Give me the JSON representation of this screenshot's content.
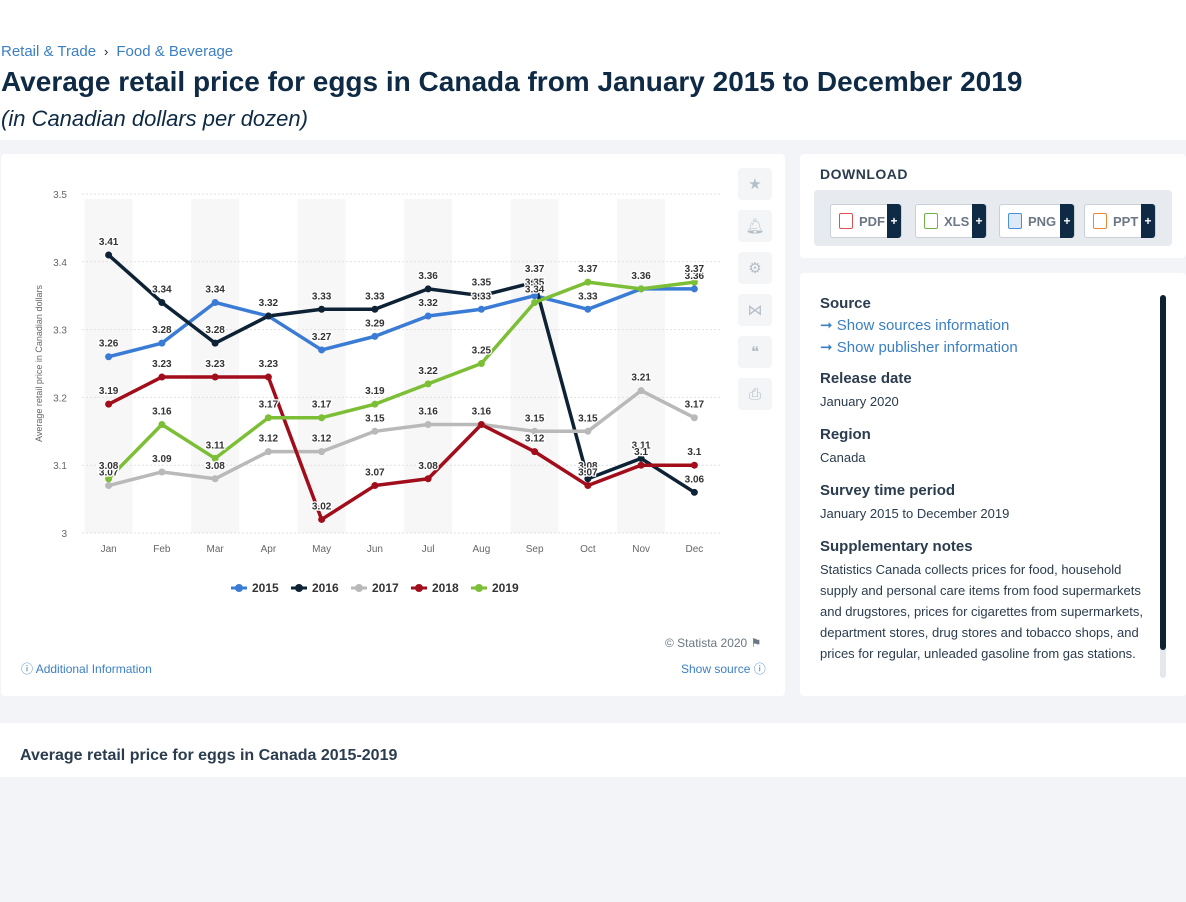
{
  "breadcrumb": {
    "item1": "Retail & Trade",
    "sep": "›",
    "item2": "Food & Beverage"
  },
  "title": "Average retail price for eggs in Canada from January 2015 to December 2019",
  "subtitle": "(in Canadian dollars per dozen)",
  "chart_data": {
    "type": "line",
    "categories": [
      "Jan",
      "Feb",
      "Mar",
      "Apr",
      "May",
      "Jun",
      "Jul",
      "Aug",
      "Sep",
      "Oct",
      "Nov",
      "Dec"
    ],
    "ylabel": "Average retail price in Canadian dollars",
    "ylim": [
      3,
      3.5
    ],
    "yticks": [
      "3",
      "3.1",
      "3.2",
      "3.3",
      "3.4",
      "3.5"
    ],
    "legend_position": "bottom",
    "series": [
      {
        "name": "2015",
        "color": "#3a7bd5",
        "values": [
          3.26,
          3.28,
          3.34,
          3.32,
          3.27,
          3.29,
          3.32,
          3.33,
          3.35,
          3.33,
          3.36,
          3.36
        ]
      },
      {
        "name": "2016",
        "color": "#0e2235",
        "values": [
          3.41,
          3.34,
          3.28,
          3.32,
          3.33,
          3.33,
          3.36,
          3.35,
          3.37,
          3.08,
          3.11,
          3.06
        ]
      },
      {
        "name": "2017",
        "color": "#b9b9b9",
        "values": [
          3.07,
          3.09,
          3.08,
          3.12,
          3.12,
          3.15,
          3.16,
          3.16,
          3.15,
          3.15,
          3.21,
          3.17
        ]
      },
      {
        "name": "2018",
        "color": "#a10d1a",
        "values": [
          3.19,
          3.23,
          3.23,
          3.23,
          3.02,
          3.07,
          3.08,
          3.16,
          3.12,
          3.07,
          3.1,
          3.1
        ]
      },
      {
        "name": "2019",
        "color": "#7cbf36",
        "values": [
          3.08,
          3.16,
          3.11,
          3.17,
          3.17,
          3.19,
          3.22,
          3.25,
          3.34,
          3.37,
          3.36,
          3.37
        ]
      }
    ]
  },
  "labels": {
    "2015": [
      "3.26",
      "3.28",
      "3.34",
      "3.32",
      "3.27",
      "3.29",
      "3.32",
      "3.33",
      "3.35",
      "3.33",
      "3.36",
      "3.36"
    ],
    "2016": [
      "3.41",
      "3.34",
      "3.28",
      "3.32",
      "3.33",
      "3.33",
      "3.36",
      "3.35",
      "3.37",
      "3.08",
      "3.11",
      "3.06"
    ],
    "2017": [
      "3.07",
      "3.09",
      "3.08",
      "3.12",
      "3.12",
      "3.15",
      "3.16",
      "3.16",
      "3.15",
      "3.15",
      "3.21",
      "3.17"
    ],
    "2018": [
      "3.19",
      "3.23",
      "3.23",
      "3.23",
      "3.02",
      "3.07",
      "3.08",
      "3.16",
      "3.12",
      "3.07",
      "3.1",
      "3.1"
    ],
    "2019": [
      "3.08",
      "3.16",
      "3.11",
      "3.17",
      "3.17",
      "3.19",
      "3.22",
      "3.25",
      "3.34",
      "3.37",
      "3.36",
      "3.37"
    ]
  },
  "footer": {
    "copyright": "© Statista 2020",
    "additional_info": "Additional Information",
    "show_source": "Show source"
  },
  "download": {
    "title": "DOWNLOAD",
    "buttons": [
      {
        "label": "PDF",
        "color": "#e05050"
      },
      {
        "label": "XLS",
        "color": "#6fb24a"
      },
      {
        "label": "PNG",
        "color": "#4a90d9"
      },
      {
        "label": "PPT",
        "color": "#e8873a"
      }
    ],
    "plus": "+"
  },
  "info": {
    "source_h": "Source",
    "show_sources": "Show sources information",
    "show_publisher": "Show publisher information",
    "release_h": "Release date",
    "release_v": "January 2020",
    "region_h": "Region",
    "region_v": "Canada",
    "survey_h": "Survey time period",
    "survey_v": "January 2015 to December 2019",
    "supp_h": "Supplementary notes",
    "supp_v": "Statistics Canada collects prices for food, household supply and personal care items from food supermarkets and drugstores, prices for cigarettes from supermarkets, department stores, drug stores and tobacco shops, and prices for regular, unleaded gasoline from gas stations."
  },
  "bottom": {
    "title": "Average retail price for eggs in Canada 2015-2019"
  }
}
